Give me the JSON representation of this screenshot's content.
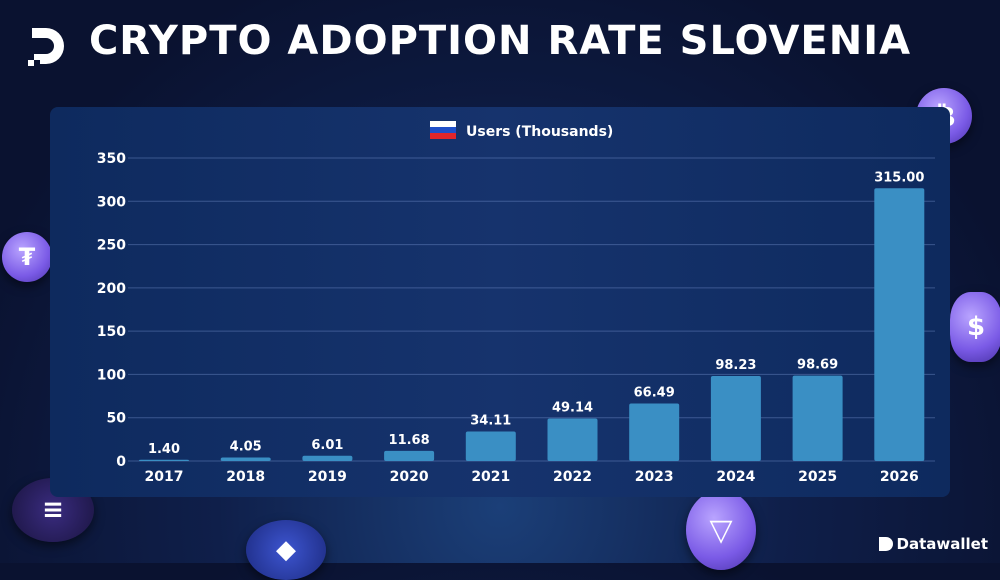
{
  "header": {
    "title": "CRYPTO ADOPTION RATE SLOVENIA"
  },
  "brand": {
    "name": "Datawallet"
  },
  "colors": {
    "bar": "#3a8fc4",
    "background": "#0f1f4a",
    "accent": "#8a6cf0"
  },
  "icons": [
    "datawallet-logo-icon",
    "bitcoin-coin-icon",
    "tether-coin-icon",
    "usdc-coin-icon",
    "solana-coin-icon",
    "ethereum-coin-icon",
    "tron-coin-icon",
    "slovenia-flag-icon"
  ],
  "chart_data": {
    "type": "bar",
    "legend": "Users (Thousands)",
    "legend_placement": "top",
    "categories": [
      "2017",
      "2018",
      "2019",
      "2020",
      "2021",
      "2022",
      "2023",
      "2024",
      "2025",
      "2026"
    ],
    "values": [
      1.4,
      4.05,
      6.01,
      11.68,
      34.11,
      49.14,
      66.49,
      98.23,
      98.69,
      315.0
    ],
    "data_labels": [
      "1.40",
      "4.05",
      "6.01",
      "11.68",
      "34.11",
      "49.14",
      "66.49",
      "98.23",
      "98.69",
      "315.00"
    ],
    "ylim": [
      0,
      350
    ],
    "yticks": [
      0,
      50,
      100,
      150,
      200,
      250,
      300,
      350
    ],
    "grid": true
  }
}
